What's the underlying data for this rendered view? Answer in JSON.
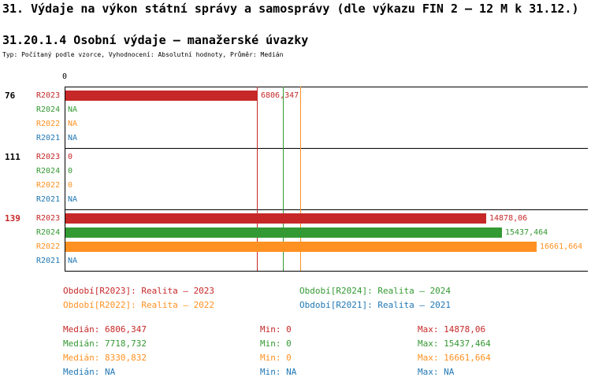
{
  "page": {
    "title": "31. Výdaje na výkon státní správy a samosprávy (dle výkazu FIN 2 – 12 M k 31.12.)",
    "subtitle": "31.20.1.4 Osobní výdaje – manažerské úvazky",
    "meta": "Typ: Počítaný podle vzorce, Vyhodnocení: Absolutní hodnoty, Průměr: Medián"
  },
  "colors": {
    "R2023": "#C62828",
    "R2024": "#339933",
    "R2022": "#FF9122",
    "R2021": "#1F77B4",
    "highlight_group": "#C62828",
    "axis": "#000000"
  },
  "chart_data": {
    "type": "bar",
    "orientation": "horizontal",
    "title": "31.20.1.4 Osobní výdaje – manažerské úvazky",
    "legend_position": "bottom",
    "grid": false,
    "x_axis": {
      "zero_label": "0",
      "min": 0,
      "scale_max": 16661.664
    },
    "series_order": [
      "R2023",
      "R2024",
      "R2022",
      "R2021"
    ],
    "groups": [
      {
        "label": "76",
        "highlight": false,
        "rows": [
          {
            "series": "R2023",
            "value": 6806.347,
            "display": "6806,347"
          },
          {
            "series": "R2024",
            "value": null,
            "display": "NA"
          },
          {
            "series": "R2022",
            "value": null,
            "display": "NA"
          },
          {
            "series": "R2021",
            "value": null,
            "display": "NA"
          }
        ]
      },
      {
        "label": "111",
        "highlight": false,
        "rows": [
          {
            "series": "R2023",
            "value": 0,
            "display": "0"
          },
          {
            "series": "R2024",
            "value": 0,
            "display": "0"
          },
          {
            "series": "R2022",
            "value": 0,
            "display": "0"
          },
          {
            "series": "R2021",
            "value": null,
            "display": "NA"
          }
        ]
      },
      {
        "label": "139",
        "highlight": true,
        "rows": [
          {
            "series": "R2023",
            "value": 14878.06,
            "display": "14878,06"
          },
          {
            "series": "R2024",
            "value": 15437.464,
            "display": "15437,464"
          },
          {
            "series": "R2022",
            "value": 16661.664,
            "display": "16661,664"
          },
          {
            "series": "R2021",
            "value": null,
            "display": "NA"
          }
        ]
      }
    ],
    "median_lines": [
      {
        "series": "R2023",
        "value": 6806.347
      },
      {
        "series": "R2024",
        "value": 7718.732
      },
      {
        "series": "R2022",
        "value": 8330.832
      }
    ],
    "legend": [
      {
        "series": "R2023",
        "text": "Období[R2023]: Realita – 2023"
      },
      {
        "series": "R2024",
        "text": "Období[R2024]: Realita – 2024"
      },
      {
        "series": "R2022",
        "text": "Období[R2022]: Realita – 2022"
      },
      {
        "series": "R2021",
        "text": "Období[R2021]: Realita – 2021"
      }
    ],
    "stats": [
      {
        "series": "R2023",
        "median": "Medián: 6806,347",
        "min": "Min: 0",
        "max": "Max: 14878,06"
      },
      {
        "series": "R2024",
        "median": "Medián: 7718,732",
        "min": "Min: 0",
        "max": "Max: 15437,464"
      },
      {
        "series": "R2022",
        "median": "Medián: 8330,832",
        "min": "Min: 0",
        "max": "Max: 16661,664"
      },
      {
        "series": "R2021",
        "median": "Medián: NA",
        "min": "Min: NA",
        "max": "Max: NA"
      }
    ]
  }
}
